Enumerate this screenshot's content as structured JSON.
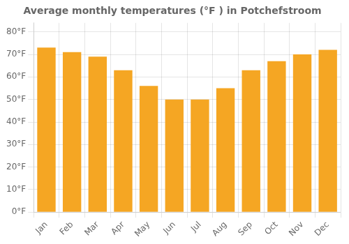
{
  "chart_data": {
    "type": "bar",
    "title": "Average monthly temperatures (°F ) in Potchefstroom",
    "categories": [
      "Jan",
      "Feb",
      "Mar",
      "Apr",
      "May",
      "Jun",
      "Jul",
      "Aug",
      "Sep",
      "Oct",
      "Nov",
      "Dec"
    ],
    "values": [
      73,
      71,
      69,
      63,
      56,
      50,
      50,
      55,
      63,
      67,
      70,
      72
    ],
    "color": "#F5A623",
    "ylim": [
      0,
      84
    ],
    "yticks": [
      {
        "value": 0,
        "label": "0°F"
      },
      {
        "value": 10,
        "label": "10°F"
      },
      {
        "value": 20,
        "label": "20°F"
      },
      {
        "value": 30,
        "label": "30°F"
      },
      {
        "value": 40,
        "label": "40°F"
      },
      {
        "value": 50,
        "label": "50°F"
      },
      {
        "value": 60,
        "label": "60°F"
      },
      {
        "value": 70,
        "label": "70°F"
      },
      {
        "value": 80,
        "label": "80°F"
      }
    ],
    "grid": true
  }
}
